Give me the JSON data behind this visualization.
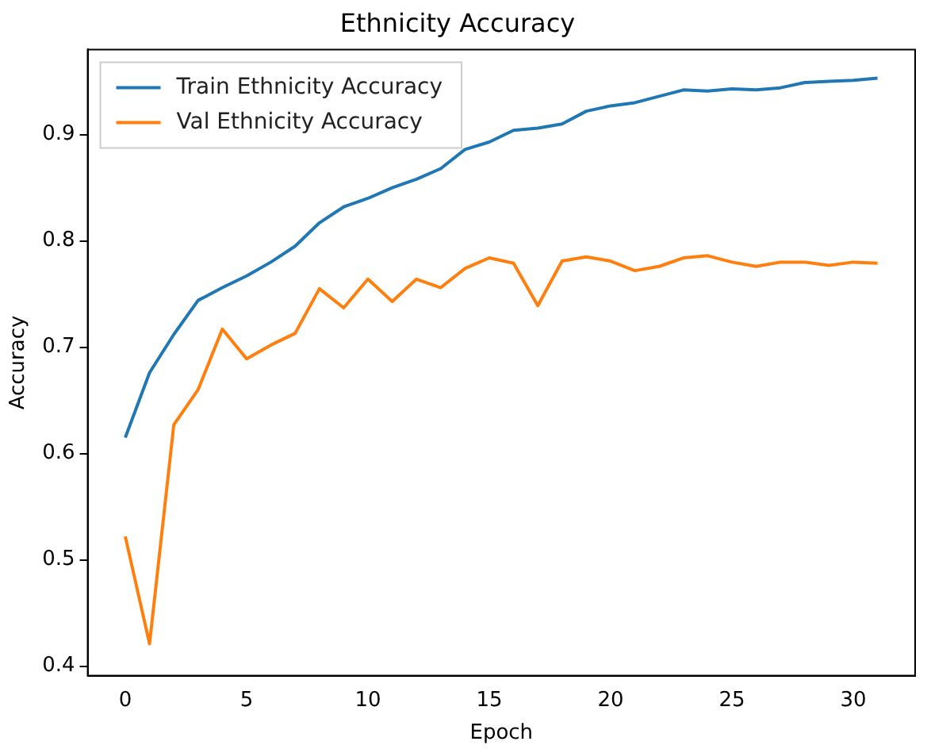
{
  "chart_data": {
    "type": "line",
    "title": "Ethnicity Accuracy",
    "xlabel": "Epoch",
    "ylabel": "Accuracy",
    "x": [
      0,
      1,
      2,
      3,
      4,
      5,
      6,
      7,
      8,
      9,
      10,
      11,
      12,
      13,
      14,
      15,
      16,
      17,
      18,
      19,
      20,
      21,
      22,
      23,
      24,
      25,
      26,
      27,
      28,
      29,
      30,
      31
    ],
    "series": [
      {
        "name": "Train Ethnicity Accuracy",
        "color": "#1f77b4",
        "values": [
          0.615,
          0.676,
          0.712,
          0.744,
          0.756,
          0.767,
          0.78,
          0.795,
          0.817,
          0.832,
          0.84,
          0.85,
          0.858,
          0.868,
          0.886,
          0.893,
          0.904,
          0.906,
          0.91,
          0.922,
          0.927,
          0.93,
          0.936,
          0.942,
          0.941,
          0.943,
          0.942,
          0.944,
          0.949,
          0.95,
          0.951,
          0.953
        ]
      },
      {
        "name": "Val Ethnicity Accuracy",
        "color": "#ff7f0e",
        "values": [
          0.522,
          0.421,
          0.627,
          0.66,
          0.717,
          0.689,
          0.702,
          0.713,
          0.755,
          0.737,
          0.764,
          0.743,
          0.764,
          0.756,
          0.774,
          0.784,
          0.779,
          0.739,
          0.781,
          0.785,
          0.781,
          0.772,
          0.776,
          0.784,
          0.786,
          0.78,
          0.776,
          0.78,
          0.78,
          0.777,
          0.78,
          0.779
        ]
      }
    ],
    "xlim": [
      -1.55,
      32.55
    ],
    "xticks": [
      0,
      5,
      10,
      15,
      20,
      25,
      30
    ],
    "ylim": [
      0.391,
      0.98
    ],
    "yticks": [
      {
        "value": 0.4,
        "label": "0.4"
      },
      {
        "value": 0.5,
        "label": "0.5"
      },
      {
        "value": 0.6,
        "label": "0.6"
      },
      {
        "value": 0.7,
        "label": "0.7"
      },
      {
        "value": 0.8,
        "label": "0.8"
      },
      {
        "value": 0.9,
        "label": "0.9"
      }
    ],
    "legend": "top left",
    "grid": false,
    "marker": "none",
    "line_style": "solid"
  }
}
